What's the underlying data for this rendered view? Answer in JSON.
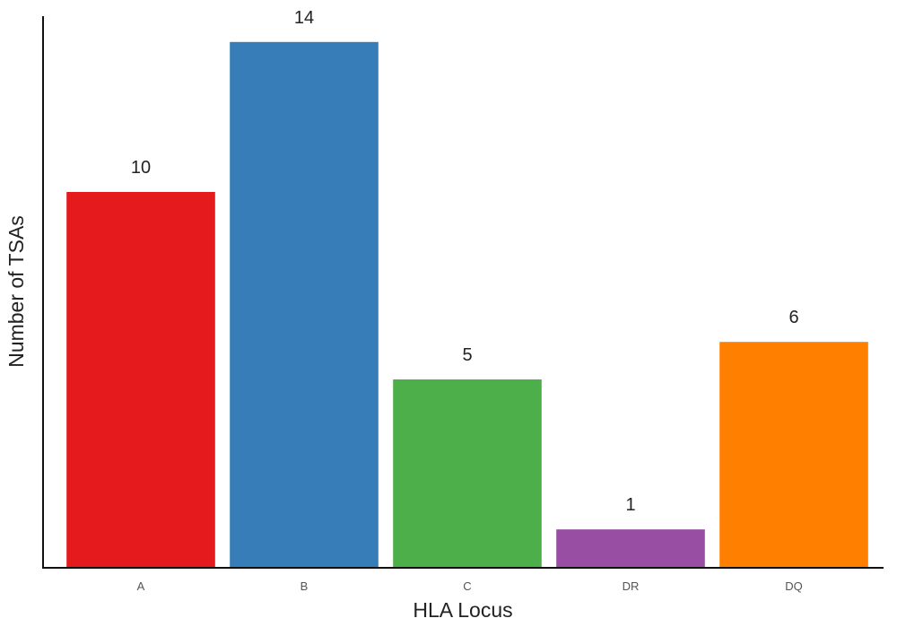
{
  "chart_data": {
    "type": "bar",
    "title": "",
    "xlabel": "HLA Locus",
    "ylabel": "Number of TSAs",
    "categories": [
      "A",
      "B",
      "C",
      "DR",
      "DQ"
    ],
    "values": [
      10,
      14,
      5,
      1,
      6
    ],
    "data_labels": [
      "10",
      "14",
      "5",
      "1",
      "6"
    ],
    "colors": [
      "#e41a1c",
      "#377eb8",
      "#4daf4a",
      "#984ea3",
      "#ff7f00"
    ],
    "ylim": [
      0,
      15
    ],
    "grid": false,
    "legend": "none"
  }
}
